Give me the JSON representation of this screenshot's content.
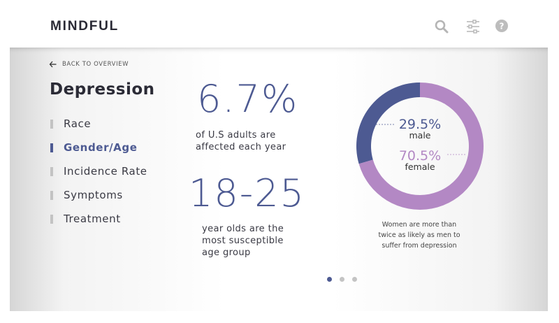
{
  "app": {
    "brand": "MINDFUL"
  },
  "toolbar": {
    "icons": [
      "search-icon",
      "filter-sliders-icon",
      "help-icon"
    ]
  },
  "back_link": {
    "label": "BACK TO OVERVIEW"
  },
  "section": {
    "title": "Depression"
  },
  "nav": {
    "items": [
      {
        "label": "Race",
        "active": false
      },
      {
        "label": "Gender/Age",
        "active": true
      },
      {
        "label": "Incidence Rate",
        "active": false
      },
      {
        "label": "Symptoms",
        "active": false
      },
      {
        "label": "Treatment",
        "active": false
      }
    ]
  },
  "stats": {
    "stat1": {
      "value": "6.7%",
      "line1": "of U.S adults are",
      "line2": "affected each year"
    },
    "stat2": {
      "value": "18-25",
      "line1": "year olds are the",
      "line2": "most susceptible",
      "line3": "age group"
    }
  },
  "chart_data": {
    "type": "pie",
    "categories": [
      "male",
      "female"
    ],
    "values": [
      29.5,
      70.5
    ],
    "labels": [
      "29.5%",
      "70.5%"
    ],
    "colors": {
      "male": "#4d5a92",
      "female": "#b388c4"
    },
    "caption_line1": "Women are more than",
    "caption_line2": "twice as likely as men to",
    "caption_line3": "suffer from depression"
  },
  "pagination": {
    "count": 3,
    "active": 0
  },
  "colors": {
    "accent": "#4d5a92",
    "secondary": "#b388c4"
  }
}
